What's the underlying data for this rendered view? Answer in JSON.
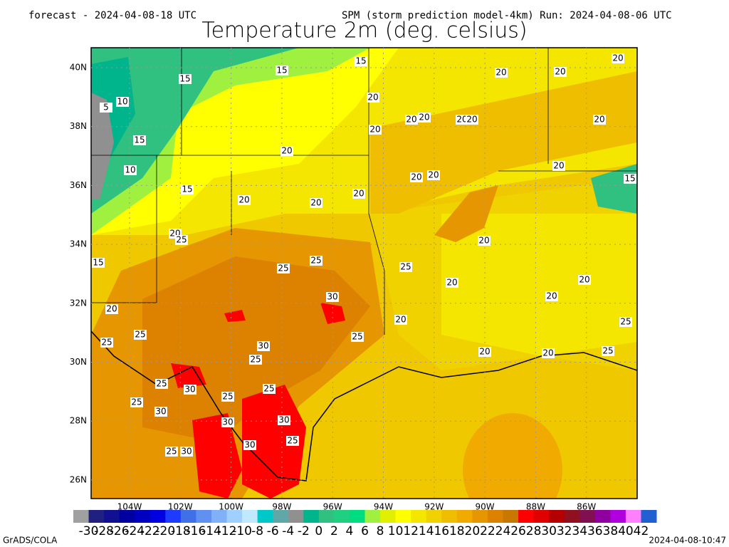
{
  "header": {
    "forecast": "forecast - 2024-04-08-18 UTC",
    "model": "SPM (storm prediction model-4km) Run: 2024-04-08-06 UTC",
    "title": "Temperature 2m (deg. celsius)"
  },
  "map": {
    "lat_labels": [
      "40N",
      "38N",
      "36N",
      "34N",
      "32N",
      "30N",
      "28N",
      "26N"
    ],
    "lon_labels": [
      "104W",
      "102W",
      "100W",
      "98W",
      "96W",
      "94W",
      "92W",
      "90W",
      "88W",
      "86W"
    ],
    "contour_labels": [
      15,
      15,
      15,
      20,
      20,
      20,
      10,
      5,
      20,
      20,
      20,
      20,
      20,
      20,
      20,
      15,
      20,
      10,
      20,
      20,
      20,
      15,
      15,
      20,
      20,
      20,
      20,
      25,
      20,
      15,
      25,
      25,
      25,
      20,
      20,
      30,
      20,
      20,
      20,
      25,
      25,
      25,
      25,
      30,
      20,
      20,
      25,
      25,
      25,
      25,
      30,
      25,
      25,
      30,
      30,
      30,
      25,
      30,
      25,
      30
    ]
  },
  "colorbar": {
    "levels": [
      -30,
      -28,
      -26,
      -24,
      -22,
      -20,
      -18,
      -16,
      -14,
      -12,
      -10,
      -8,
      -6,
      -4,
      -2,
      0,
      2,
      4,
      6,
      8,
      10,
      12,
      14,
      16,
      18,
      20,
      22,
      24,
      26,
      28,
      30,
      32,
      34,
      36,
      38,
      40,
      42
    ],
    "colors": [
      "#a0a0a0",
      "#202080",
      "#101090",
      "#0000a0",
      "#0000c0",
      "#0000e0",
      "#1e3cff",
      "#4070e8",
      "#6090f0",
      "#80b0f8",
      "#a0d0ff",
      "#c0e8ff",
      "#00c8c8",
      "#60a8a8",
      "#909090",
      "#00b48c",
      "#30c080",
      "#20d080",
      "#00dc80",
      "#a0f040",
      "#e0f000",
      "#ffff00",
      "#f5e600",
      "#f0d200",
      "#f0be00",
      "#f0aa00",
      "#e69600",
      "#dc8200",
      "#c87800",
      "#ff0000",
      "#e00000",
      "#b40000",
      "#901020",
      "#801050",
      "#9000a0",
      "#b000e0",
      "#ff80ff",
      "#2060d0"
    ]
  },
  "footer": {
    "left": "GrADS/COLA",
    "right": "2024-04-08-10:47"
  }
}
